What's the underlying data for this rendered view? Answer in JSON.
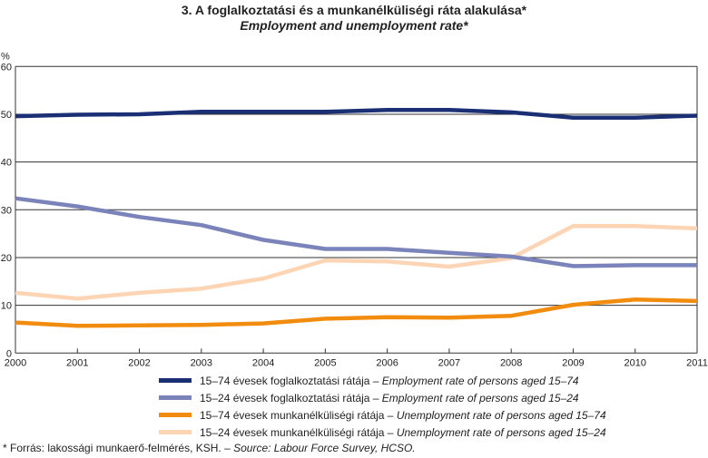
{
  "chart_data": {
    "type": "line",
    "title": "3. A foglalkoztatási és a munkanélküliségi ráta alakulása*",
    "subtitle": "Employment and unemployment rate*",
    "ylabel": "%",
    "xlabel": "",
    "ylim": [
      0,
      60
    ],
    "yticks": [
      "0",
      "10",
      "20",
      "30",
      "40",
      "50",
      "60"
    ],
    "x": [
      "2000",
      "2001",
      "2002",
      "2003",
      "2004",
      "2005",
      "2006",
      "2007",
      "2008",
      "2009",
      "2010",
      "2011"
    ],
    "grid": "horizontal",
    "legend_position": "bottom",
    "series": [
      {
        "name_hu": "15–74 évesek foglalkoztatási rátája",
        "name_en": "Employment rate of persons aged 15–74",
        "color": "#1b2f74",
        "values": [
          49.6,
          49.9,
          50.0,
          50.5,
          50.5,
          50.5,
          50.9,
          50.9,
          50.4,
          49.3,
          49.3,
          49.7
        ]
      },
      {
        "name_hu": "15–24 évesek foglalkoztatási rátája",
        "name_en": "Employment rate of persons aged 15–24",
        "color": "#7a83ba",
        "values": [
          32.4,
          30.7,
          28.5,
          26.8,
          23.7,
          21.8,
          21.8,
          21.0,
          20.2,
          18.2,
          18.4,
          18.4
        ]
      },
      {
        "name_hu": "15–74 évesek munkanélküliségi rátája",
        "name_en": "Unemployment rate of persons aged 15–74",
        "color": "#f28c0f",
        "values": [
          6.4,
          5.7,
          5.8,
          5.9,
          6.2,
          7.2,
          7.5,
          7.4,
          7.8,
          10.1,
          11.2,
          10.9
        ]
      },
      {
        "name_hu": "15–24 évesek munkanélküliségi rátája",
        "name_en": "Unemployment rate of persons aged 15–24",
        "color": "#fdd5b4",
        "values": [
          12.6,
          11.4,
          12.6,
          13.5,
          15.6,
          19.4,
          19.2,
          18.1,
          19.9,
          26.6,
          26.6,
          26.1
        ]
      }
    ]
  },
  "legend_separator": " – ",
  "footnote": {
    "hu": "* Forrás: lakossági munkaerő-felmérés, KSH. – ",
    "en": "Source: Labour Force Survey, HCSO."
  }
}
